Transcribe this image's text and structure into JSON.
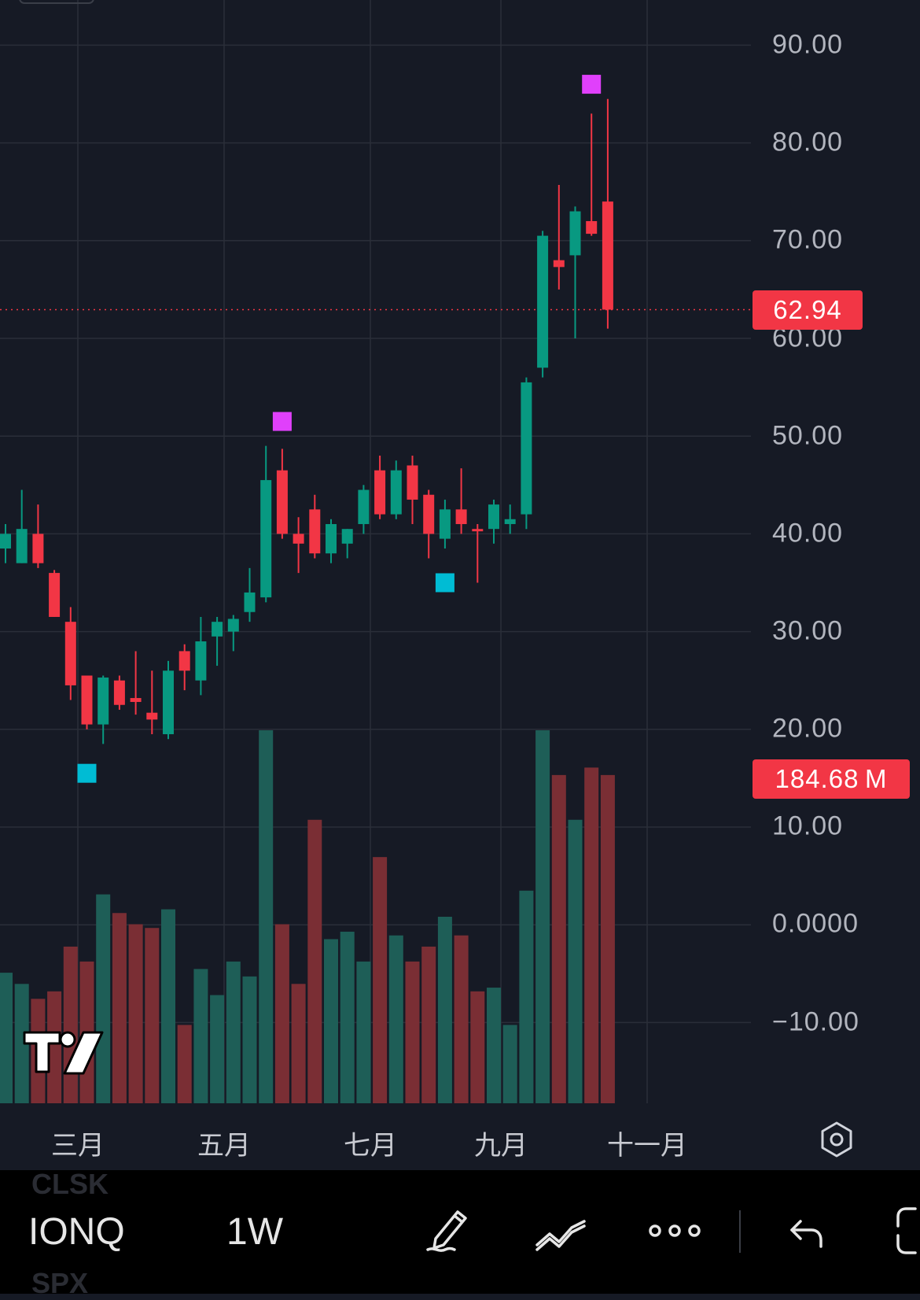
{
  "colors": {
    "background": "#161a25",
    "grid": "#2a2e39",
    "up": "#089981",
    "down": "#f23645",
    "up_volume": "#1e5e57",
    "down_volume": "#7a2e34",
    "marker_high": "#e040fb",
    "marker_low": "#00bcd4"
  },
  "price_axis": {
    "ticks": [
      "90.00",
      "80.00",
      "70.00",
      "60.00",
      "50.00",
      "40.00",
      "30.00",
      "20.00",
      "10.00",
      "0.0000",
      "−10.00"
    ]
  },
  "last_price_label": "62.94",
  "volume_label": "184.68 M",
  "time_axis": {
    "labels": [
      "三月",
      "五月",
      "七月",
      "九月",
      "十一月"
    ]
  },
  "toolbar": {
    "symbol": "IONQ",
    "interval": "1W",
    "ghost_above": "CLSK",
    "ghost_below": "SPX",
    "icons": [
      "pencil-icon",
      "trend-line-icon",
      "more-icon",
      "undo-icon",
      "fullscreen-icon"
    ]
  },
  "chart_data": {
    "type": "candlestick",
    "symbol": "IONQ",
    "interval": "1W",
    "last_price": 62.94,
    "last_volume": "184.68M",
    "y_range": [
      -17,
      96
    ],
    "candles": [
      {
        "open": 38.5,
        "high": 41.0,
        "low": 37.0,
        "close": 40.0
      },
      {
        "open": 37.0,
        "high": 44.5,
        "low": 37.0,
        "close": 40.5
      },
      {
        "open": 40.0,
        "high": 43.0,
        "low": 36.5,
        "close": 37.0
      },
      {
        "open": 36.0,
        "high": 36.3,
        "low": 31.5,
        "close": 31.5
      },
      {
        "open": 31.0,
        "high": 32.5,
        "low": 23.0,
        "close": 24.5
      },
      {
        "open": 25.5,
        "high": 25.5,
        "low": 20.0,
        "close": 20.5
      },
      {
        "open": 20.5,
        "high": 25.5,
        "low": 18.5,
        "close": 25.3
      },
      {
        "open": 25.0,
        "high": 25.5,
        "low": 22.0,
        "close": 22.5
      },
      {
        "open": 23.2,
        "high": 28.0,
        "low": 21.5,
        "close": 22.8
      },
      {
        "open": 21.7,
        "high": 26.0,
        "low": 19.5,
        "close": 21.0
      },
      {
        "open": 19.5,
        "high": 27.0,
        "low": 19.0,
        "close": 26.0
      },
      {
        "open": 28.0,
        "high": 28.7,
        "low": 24.0,
        "close": 26.0
      },
      {
        "open": 25.0,
        "high": 31.5,
        "low": 23.5,
        "close": 29.0
      },
      {
        "open": 29.5,
        "high": 31.5,
        "low": 26.5,
        "close": 31.0
      },
      {
        "open": 30.0,
        "high": 31.7,
        "low": 28.0,
        "close": 31.3
      },
      {
        "open": 32.0,
        "high": 36.5,
        "low": 31.0,
        "close": 34.0
      },
      {
        "open": 33.5,
        "high": 49.0,
        "low": 33.0,
        "close": 45.5
      },
      {
        "open": 46.5,
        "high": 48.7,
        "low": 39.5,
        "close": 40.0
      },
      {
        "open": 40.0,
        "high": 41.7,
        "low": 36.0,
        "close": 39.0
      },
      {
        "open": 42.5,
        "high": 44.0,
        "low": 37.5,
        "close": 38.0
      },
      {
        "open": 38.0,
        "high": 41.5,
        "low": 37.0,
        "close": 41.0
      },
      {
        "open": 39.0,
        "high": 40.5,
        "low": 37.5,
        "close": 40.5
      },
      {
        "open": 41.0,
        "high": 45.0,
        "low": 40.0,
        "close": 44.5
      },
      {
        "open": 46.5,
        "high": 48.0,
        "low": 41.5,
        "close": 42.0
      },
      {
        "open": 42.0,
        "high": 47.5,
        "low": 41.5,
        "close": 46.5
      },
      {
        "open": 47.0,
        "high": 48.0,
        "low": 41.0,
        "close": 43.5
      },
      {
        "open": 44.0,
        "high": 44.5,
        "low": 37.5,
        "close": 40.0
      },
      {
        "open": 39.5,
        "high": 43.5,
        "low": 38.5,
        "close": 42.5
      },
      {
        "open": 42.5,
        "high": 46.7,
        "low": 40.0,
        "close": 41.0
      },
      {
        "open": 40.5,
        "high": 41.0,
        "low": 35.0,
        "close": 40.3
      },
      {
        "open": 40.5,
        "high": 43.5,
        "low": 39.0,
        "close": 43.0
      },
      {
        "open": 41.0,
        "high": 43.0,
        "low": 40.0,
        "close": 41.5
      },
      {
        "open": 42.0,
        "high": 56.0,
        "low": 40.5,
        "close": 55.5
      },
      {
        "open": 57.0,
        "high": 71.0,
        "low": 56.0,
        "close": 70.5
      },
      {
        "open": 68.0,
        "high": 75.7,
        "low": 65.0,
        "close": 67.3
      },
      {
        "open": 68.5,
        "high": 73.5,
        "low": 60.0,
        "close": 73.0
      },
      {
        "open": 72.0,
        "high": 83.0,
        "low": 70.5,
        "close": 70.7
      },
      {
        "open": 74.0,
        "high": 84.5,
        "low": 61.0,
        "close": 62.94
      }
    ],
    "volume_scale": "relative",
    "volumes": [
      35,
      32,
      28,
      30,
      42,
      38,
      56,
      51,
      48,
      47,
      52,
      21,
      36,
      29,
      38,
      34,
      100,
      48,
      32,
      76,
      44,
      46,
      38,
      66,
      45,
      38,
      42,
      50,
      45,
      30,
      31,
      21,
      57,
      100,
      88,
      76,
      90,
      88
    ],
    "markers": [
      {
        "type": "high",
        "index": 17,
        "price": 51.5,
        "shape": "square"
      },
      {
        "type": "high",
        "index": 36,
        "price": 86.0,
        "shape": "square"
      },
      {
        "type": "low",
        "index": 5,
        "price": 15.5,
        "shape": "square"
      },
      {
        "type": "low",
        "index": 27,
        "price": 35.0,
        "shape": "square"
      }
    ],
    "x_axis_labels": [
      "三月",
      "五月",
      "七月",
      "九月",
      "十一月"
    ],
    "y_ticks": [
      90,
      80,
      70,
      60,
      50,
      40,
      30,
      20,
      10,
      0,
      -10
    ]
  }
}
